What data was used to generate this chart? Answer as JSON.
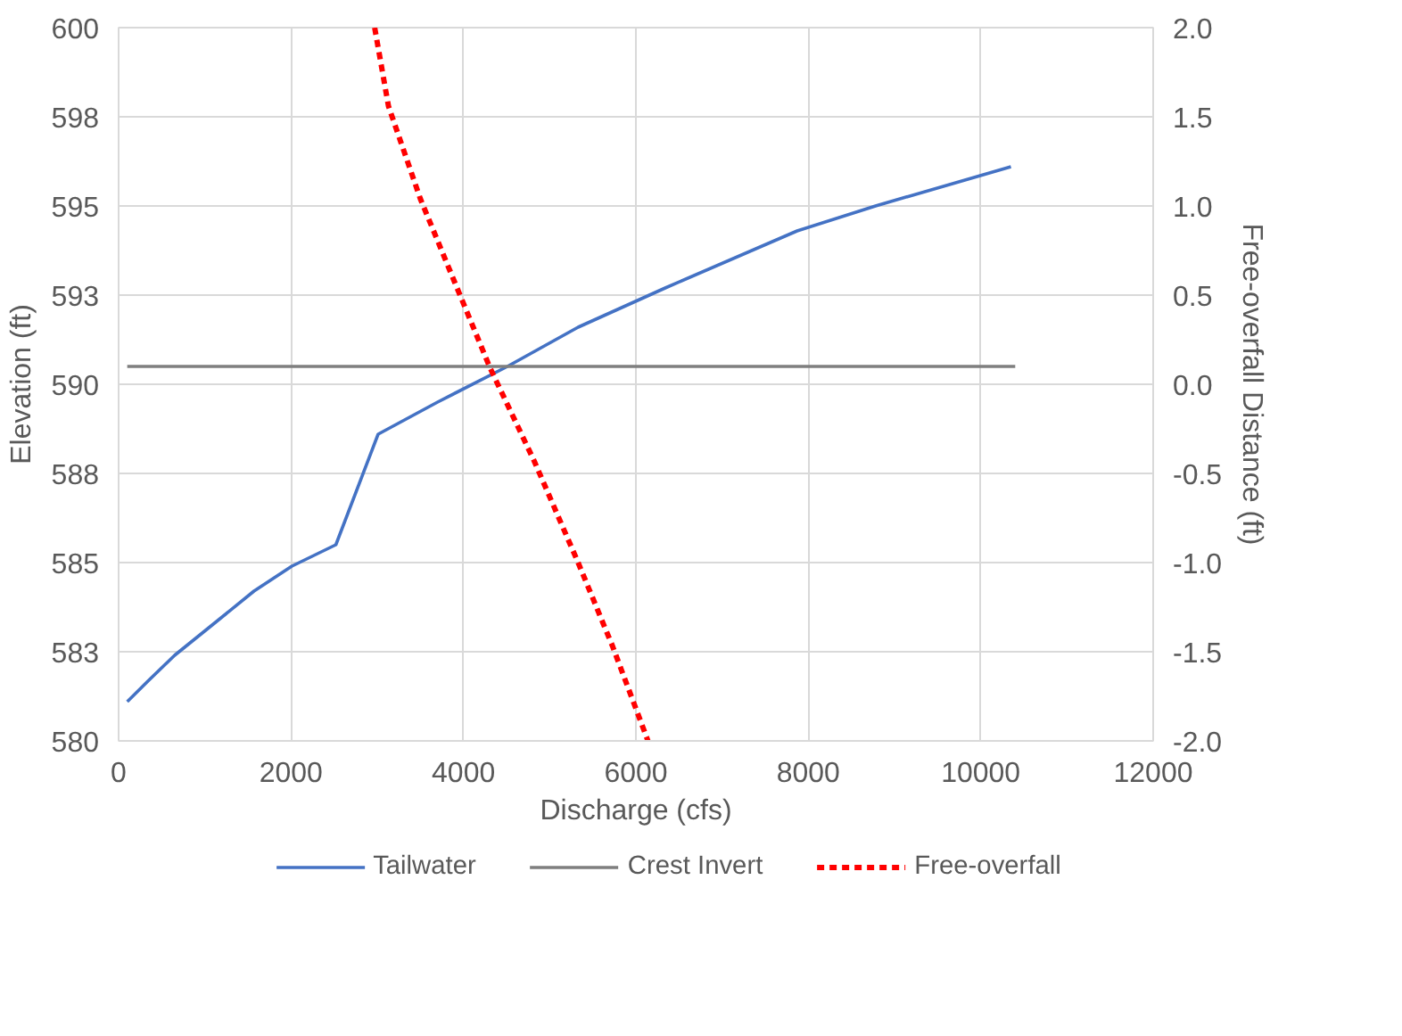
{
  "chart_data": {
    "type": "line",
    "xlabel": "Discharge (cfs)",
    "ylabel": "Elevation (ft)",
    "y2label": "Free-overfall Distance (ft)",
    "xlim": [
      0,
      12000
    ],
    "xticks": [
      0,
      2000,
      4000,
      6000,
      8000,
      10000,
      12000
    ],
    "ylim": [
      580,
      600
    ],
    "yticks": [
      580,
      {
        "value": 582.5,
        "label": "583"
      },
      585,
      {
        "value": 587.5,
        "label": "588"
      },
      590,
      {
        "value": 592.5,
        "label": "593"
      },
      595,
      {
        "value": 597.5,
        "label": "598"
      },
      600
    ],
    "y2lim": [
      -2,
      2
    ],
    "y2ticks": [
      {
        "value": -2,
        "label": "-2.0"
      },
      {
        "value": -1.5,
        "label": "-1.5"
      },
      {
        "value": -1,
        "label": "-1.0"
      },
      {
        "value": -0.5,
        "label": "-0.5"
      },
      {
        "value": 0,
        "label": "0.0"
      },
      {
        "value": 0.5,
        "label": "0.5"
      },
      {
        "value": 1,
        "label": "1.0"
      },
      {
        "value": 1.5,
        "label": "1.5"
      },
      {
        "value": 2,
        "label": "2.0"
      }
    ],
    "grid": true,
    "legend": "bottom",
    "marker": "none",
    "series": [
      {
        "name": "Tailwater",
        "color": "#4472c4",
        "line_style": "solid",
        "x": [
          100,
          350,
          650,
          1060,
          1570,
          2010,
          2520,
          3010,
          3700,
          4510,
          5330,
          6340,
          7870,
          8780,
          10350
        ],
        "values": [
          581.1,
          581.7,
          582.4,
          583.2,
          584.2,
          584.9,
          585.5,
          588.6,
          589.5,
          590.5,
          591.6,
          592.7,
          594.3,
          595.0,
          596.1
        ]
      },
      {
        "name": "Crest Invert",
        "color": "#7f7f7f",
        "line_style": "solid",
        "x": [
          100,
          10400
        ],
        "values": [
          590.5,
          590.5
        ]
      },
      {
        "name": "Free-overfall",
        "color": "#ff0000",
        "line_style": "dashed",
        "axis": "y2",
        "x": [
          2970,
          3130,
          3500,
          3900,
          4310,
          4820,
          5330,
          5730,
          6140
        ],
        "values": [
          2.0,
          1.56,
          1.04,
          0.57,
          0.09,
          -0.43,
          -1.0,
          -1.47,
          -2.0
        ]
      }
    ]
  }
}
